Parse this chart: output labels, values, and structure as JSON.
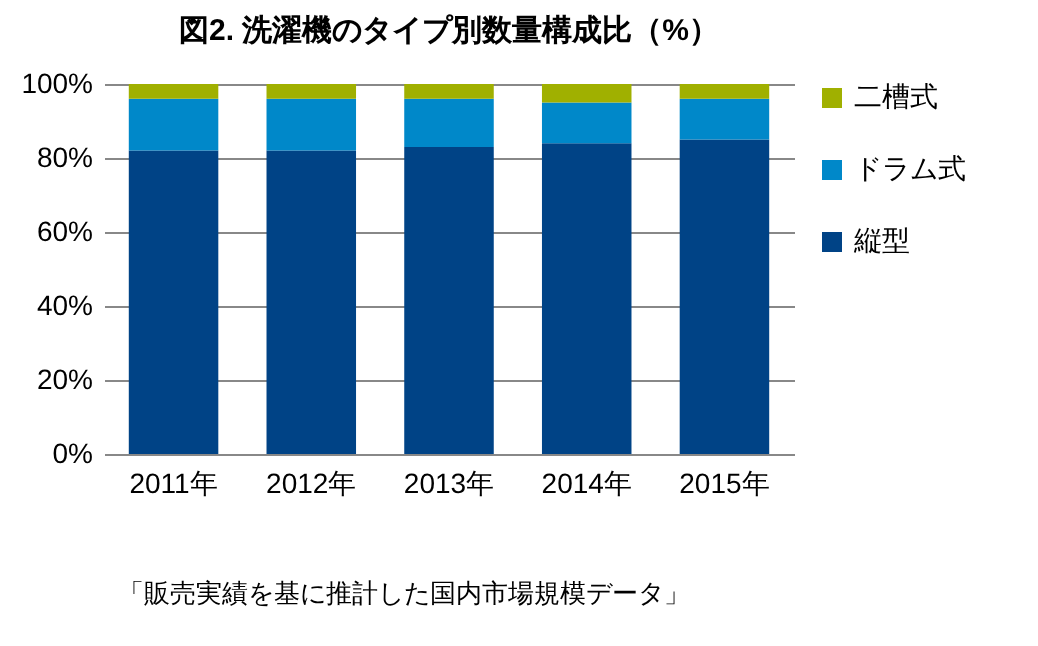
{
  "chart_data": {
    "type": "bar",
    "stacked": true,
    "title": "図2. 洗濯機のタイプ別数量構成比（%）",
    "categories": [
      "2011年",
      "2012年",
      "2013年",
      "2014年",
      "2015年"
    ],
    "series": [
      {
        "name": "縦型",
        "color": "#004386",
        "values": [
          82,
          82,
          83,
          84,
          85
        ]
      },
      {
        "name": "ドラム式",
        "color": "#0088c9",
        "values": [
          14,
          14,
          13,
          11,
          11
        ]
      },
      {
        "name": "二槽式",
        "color": "#a0b000",
        "values": [
          4,
          4,
          4,
          5,
          4
        ]
      }
    ],
    "ylim": [
      0,
      100
    ],
    "yticks": [
      {
        "value": 0,
        "label": "0%"
      },
      {
        "value": 20,
        "label": "20%"
      },
      {
        "value": 40,
        "label": "40%"
      },
      {
        "value": 60,
        "label": "60%"
      },
      {
        "value": 80,
        "label": "80%"
      },
      {
        "value": 100,
        "label": "100%"
      }
    ],
    "grid": "y",
    "legend": "right",
    "annotations": [
      "「販売実績を基に推計した国内市場規模データ」"
    ]
  }
}
